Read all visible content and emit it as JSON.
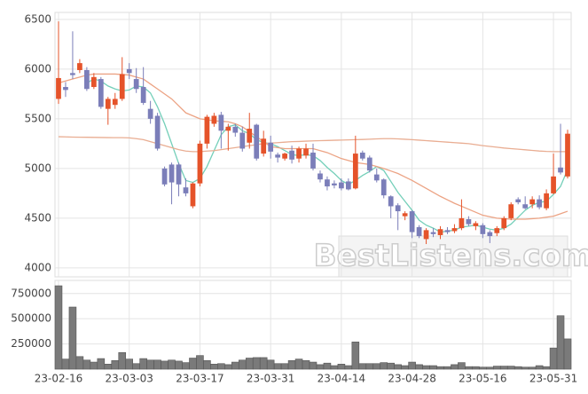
{
  "chart_data": {
    "type": "candlestick",
    "watermark": "BestListens.com",
    "categories": [
      "23-02-16",
      null,
      null,
      null,
      null,
      null,
      null,
      null,
      null,
      null,
      "23-03-03",
      null,
      null,
      null,
      null,
      null,
      null,
      null,
      null,
      null,
      "23-03-17",
      null,
      null,
      null,
      null,
      null,
      null,
      null,
      null,
      null,
      "23-03-31",
      null,
      null,
      null,
      null,
      null,
      null,
      null,
      null,
      null,
      "23-04-14",
      null,
      null,
      null,
      null,
      null,
      null,
      null,
      null,
      null,
      "23-04-28",
      null,
      null,
      null,
      null,
      null,
      null,
      null,
      null,
      null,
      "23-05-16",
      null,
      null,
      null,
      null,
      null,
      null,
      null,
      null,
      null,
      "23-05-31",
      null,
      null
    ],
    "open": [
      5700,
      5820,
      5960,
      5990,
      5990,
      5820,
      5900,
      5600,
      5640,
      5700,
      6000,
      5900,
      5820,
      5600,
      5530,
      5000,
      5040,
      5040,
      4810,
      4620,
      4850,
      5250,
      5450,
      5540,
      5380,
      5420,
      5360,
      5260,
      5440,
      5150,
      5260,
      5140,
      5100,
      5180,
      5100,
      5130,
      5160,
      4950,
      4890,
      4850,
      4860,
      4870,
      4800,
      5160,
      5110,
      4940,
      4890,
      4720,
      4630,
      4520,
      4570,
      4410,
      4290,
      4360,
      4330,
      4380,
      4370,
      4400,
      4490,
      4420,
      4430,
      4360,
      4350,
      4400,
      4500,
      4690,
      4640,
      4640,
      4690,
      4600,
      4750,
      5010,
      4920
    ],
    "high": [
      6480,
      5870,
      6380,
      6100,
      6020,
      5960,
      5920,
      5720,
      5760,
      6120,
      6060,
      6010,
      6020,
      5680,
      5560,
      5020,
      5060,
      5060,
      4900,
      4860,
      5280,
      5540,
      5560,
      5570,
      5450,
      5450,
      5420,
      5560,
      5450,
      5380,
      5330,
      5160,
      5160,
      5230,
      5220,
      5250,
      5250,
      4980,
      4920,
      4880,
      4900,
      4900,
      5330,
      5180,
      5130,
      5000,
      4900,
      4730,
      4650,
      4570,
      4580,
      4430,
      4400,
      4400,
      4420,
      4410,
      4440,
      4690,
      4520,
      4470,
      4450,
      4380,
      4420,
      4520,
      4660,
      4710,
      4720,
      4720,
      4730,
      4790,
      5150,
      5450,
      5390
    ],
    "low": [
      5650,
      5720,
      5900,
      5960,
      5780,
      5800,
      5600,
      5440,
      5600,
      5680,
      5900,
      5760,
      5640,
      5450,
      5180,
      4820,
      4640,
      4720,
      4720,
      4600,
      4820,
      5200,
      5420,
      5200,
      5180,
      5320,
      5170,
      5200,
      5080,
      5120,
      5100,
      5060,
      5080,
      5050,
      5060,
      5100,
      4980,
      4860,
      4780,
      4800,
      4780,
      4780,
      4790,
      5080,
      4960,
      4860,
      4700,
      4500,
      4380,
      4480,
      4300,
      4300,
      4240,
      4310,
      4290,
      4340,
      4350,
      4380,
      4420,
      4380,
      4300,
      4250,
      4320,
      4380,
      4480,
      4640,
      4590,
      4600,
      4590,
      4580,
      4740,
      4940,
      4900
    ],
    "close": [
      5910,
      5790,
      5940,
      6060,
      5800,
      5920,
      5620,
      5700,
      5700,
      5950,
      5960,
      5800,
      5660,
      5500,
      5200,
      4840,
      4860,
      4840,
      4750,
      4850,
      5250,
      5520,
      5530,
      5380,
      5420,
      5360,
      5200,
      5400,
      5100,
      5300,
      5170,
      5110,
      5150,
      5090,
      5200,
      5200,
      5000,
      4890,
      4820,
      4830,
      4800,
      4790,
      5150,
      5100,
      4980,
      4880,
      4730,
      4620,
      4570,
      4550,
      4360,
      4320,
      4380,
      4340,
      4390,
      4360,
      4400,
      4500,
      4440,
      4450,
      4340,
      4320,
      4400,
      4500,
      4640,
      4660,
      4600,
      4690,
      4610,
      4750,
      4920,
      4960,
      5350
    ],
    "up_color": "#e5532a",
    "down_color": "#7b7eb9",
    "ylim": [
      3910,
      6570
    ],
    "yticks": [
      4000,
      4500,
      5000,
      5500,
      6000,
      6500
    ],
    "grid": true,
    "lines": [
      {
        "color": "#74cfb9",
        "values": [
          null,
          null,
          null,
          null,
          5860,
          5900,
          5880,
          5830,
          5800,
          5780,
          5790,
          5830,
          5820,
          5760,
          5620,
          5450,
          5250,
          5050,
          4880,
          4860,
          4900,
          5020,
          5180,
          5340,
          5420,
          5440,
          5380,
          5350,
          5290,
          5260,
          5250,
          5220,
          5180,
          5140,
          5130,
          5140,
          5130,
          5080,
          5010,
          4950,
          4880,
          4840,
          4880,
          4930,
          4970,
          5020,
          4980,
          4870,
          4760,
          4670,
          4580,
          4480,
          4430,
          4400,
          4360,
          4370,
          4380,
          4410,
          4420,
          4430,
          4410,
          4390,
          4380,
          4400,
          4440,
          4510,
          4580,
          4630,
          4660,
          4670,
          4740,
          4820,
          4990
        ]
      },
      {
        "color": "#eca384",
        "values": [
          5860,
          5880,
          5900,
          5920,
          5940,
          5950,
          5950,
          5950,
          5950,
          5945,
          5940,
          5920,
          5900,
          5850,
          5800,
          5750,
          5700,
          5630,
          5560,
          5530,
          5500,
          5490,
          5480,
          5475,
          5470,
          5450,
          5420,
          5370,
          5320,
          5270,
          5220,
          5210,
          5200,
          5200,
          5200,
          5200,
          5200,
          5180,
          5160,
          5130,
          5100,
          5080,
          5060,
          5050,
          5040,
          5020,
          5000,
          4975,
          4950,
          4915,
          4880,
          4840,
          4800,
          4760,
          4720,
          4685,
          4650,
          4620,
          4590,
          4560,
          4530,
          4515,
          4500,
          4495,
          4490,
          4490,
          4490,
          4495,
          4500,
          4510,
          4520,
          4545,
          4570
        ]
      },
      {
        "color": "#e9ad92",
        "values": [
          5320,
          5318,
          5316,
          5315,
          5314,
          5313,
          5312,
          5311,
          5310,
          5310,
          5308,
          5300,
          5290,
          5270,
          5250,
          5230,
          5210,
          5190,
          5175,
          5170,
          5170,
          5175,
          5180,
          5190,
          5200,
          5210,
          5220,
          5230,
          5240,
          5250,
          5255,
          5260,
          5265,
          5270,
          5272,
          5275,
          5278,
          5280,
          5282,
          5284,
          5286,
          5288,
          5290,
          5292,
          5295,
          5298,
          5300,
          5300,
          5298,
          5294,
          5290,
          5285,
          5280,
          5275,
          5270,
          5265,
          5260,
          5255,
          5250,
          5240,
          5230,
          5222,
          5214,
          5206,
          5200,
          5194,
          5188,
          5182,
          5176,
          5172,
          5170,
          5170,
          5170
        ]
      }
    ],
    "volume": {
      "values": [
        827000,
        100000,
        616000,
        125000,
        90000,
        70000,
        105000,
        50000,
        85000,
        165000,
        100000,
        55000,
        105000,
        90000,
        90000,
        80000,
        90000,
        80000,
        65000,
        110000,
        135000,
        85000,
        50000,
        55000,
        45000,
        70000,
        90000,
        110000,
        115000,
        115000,
        90000,
        55000,
        55000,
        85000,
        100000,
        85000,
        70000,
        45000,
        60000,
        35000,
        50000,
        35000,
        270000,
        55000,
        55000,
        55000,
        65000,
        60000,
        45000,
        35000,
        70000,
        45000,
        35000,
        35000,
        25000,
        25000,
        45000,
        65000,
        25000,
        25000,
        20000,
        20000,
        30000,
        30000,
        30000,
        25000,
        20000,
        20000,
        35000,
        25000,
        210000,
        530000,
        300000
      ],
      "color": "#7a7a7a",
      "ylim": [
        0,
        880000
      ],
      "yticks": [
        250000,
        500000,
        750000
      ]
    }
  }
}
